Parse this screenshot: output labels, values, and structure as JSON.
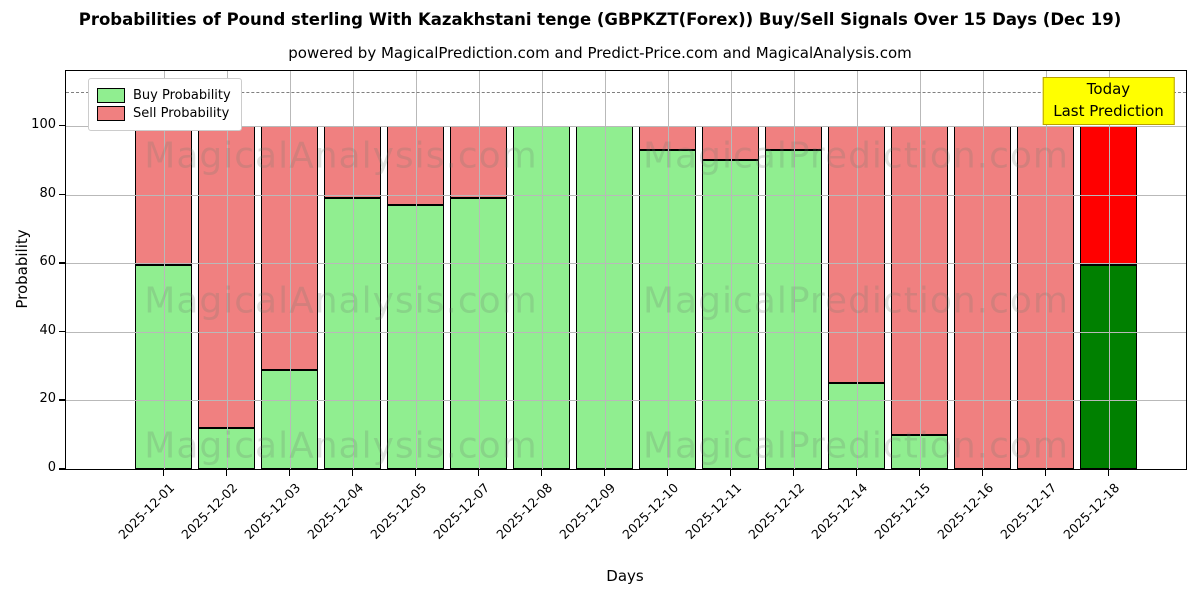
{
  "figure": {
    "title": "Probabilities of Pound sterling With Kazakhstani tenge (GBPKZT(Forex)) Buy/Sell Signals Over 15 Days (Dec 19)",
    "subtitle": "powered by MagicalPrediction.com and Predict-Price.com and MagicalAnalysis.com"
  },
  "chart_data": {
    "type": "bar",
    "stacked": true,
    "title": "Probabilities of Pound sterling With Kazakhstani tenge (GBPKZT(Forex)) Buy/Sell Signals Over 15 Days (Dec 19)",
    "subtitle": "powered by MagicalPrediction.com and Predict-Price.com and MagicalAnalysis.com",
    "xlabel": "Days",
    "ylabel": "Probability",
    "categories": [
      "2025-12-01",
      "2025-12-02",
      "2025-12-03",
      "2025-12-04",
      "2025-12-05",
      "2025-12-07",
      "2025-12-08",
      "2025-12-09",
      "2025-12-10",
      "2025-12-11",
      "2025-12-12",
      "2025-12-14",
      "2025-12-15",
      "2025-12-16",
      "2025-12-17",
      "2025-12-18"
    ],
    "series": [
      {
        "name": "Buy Probability",
        "color": "#90EE90",
        "values": [
          59.5,
          12,
          29,
          79,
          77,
          79,
          100,
          100,
          93,
          90,
          93,
          25,
          10,
          0,
          0,
          59.5
        ]
      },
      {
        "name": "Sell Probability",
        "color": "#F08080",
        "values": [
          40.5,
          88,
          71,
          21,
          23,
          21,
          0,
          0,
          7,
          10,
          7,
          75,
          90,
          100,
          100,
          40.5
        ]
      }
    ],
    "highlight": {
      "index": 15,
      "buy_color": "#008000",
      "sell_color": "#FF0000"
    },
    "annotation": {
      "lines": [
        "Today",
        "Last Prediction"
      ],
      "bg": "#FFFF00"
    },
    "yticks": [
      0,
      20,
      40,
      60,
      80,
      100
    ],
    "ylim": [
      0,
      116
    ],
    "dashed_line_y": 110,
    "grid": true,
    "legend_position": "upper-left",
    "watermark_left": "MagicalAnalysis.com",
    "watermark_right": "MagicalPrediction.com"
  }
}
